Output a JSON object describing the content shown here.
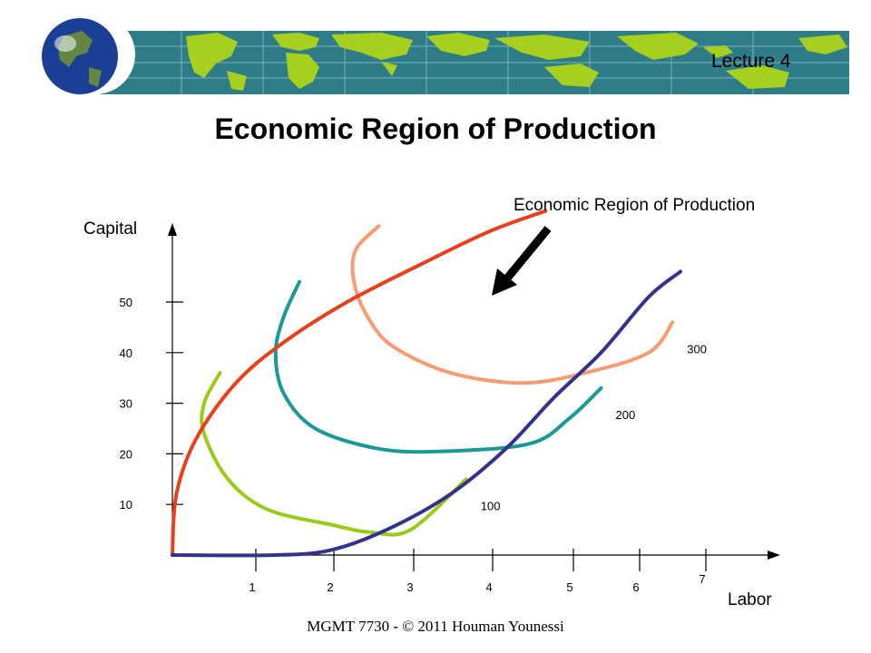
{
  "slide": {
    "lecture_label": "Lecture 4",
    "title": "Economic Region of Production",
    "footer": "MGMT 7730 - © 2011 Houman Younessi"
  },
  "banner": {
    "icons": [
      "globe-icon",
      "world-map"
    ],
    "colors": {
      "ocean": "#2e7c87",
      "land": "#a6cf1f",
      "globe": "#1c3f96"
    }
  },
  "chart_data": {
    "type": "line",
    "xlabel": "Labor",
    "ylabel": "Capital",
    "annotation": "Economic Region of Production",
    "x_ticks": [
      "1",
      "2",
      "3",
      "4",
      "5",
      "6",
      "7"
    ],
    "y_ticks": [
      "10",
      "20",
      "30",
      "40",
      "50"
    ],
    "isoquants": [
      {
        "label": "100",
        "color": "#99cc1a",
        "points": [
          [
            0.6,
            36
          ],
          [
            0.4,
            30
          ],
          [
            0.4,
            24
          ],
          [
            0.7,
            15
          ],
          [
            1.2,
            9
          ],
          [
            2.0,
            6
          ],
          [
            2.5,
            4.5
          ],
          [
            3.0,
            5
          ],
          [
            3.7,
            15
          ]
        ]
      },
      {
        "label": "200",
        "color": "#1a9999",
        "points": [
          [
            1.6,
            54
          ],
          [
            1.4,
            47
          ],
          [
            1.3,
            40
          ],
          [
            1.4,
            32
          ],
          [
            1.8,
            25
          ],
          [
            2.6,
            21
          ],
          [
            3.4,
            20.5
          ],
          [
            4.5,
            22
          ],
          [
            5.0,
            27
          ],
          [
            5.4,
            33
          ]
        ]
      },
      {
        "label": "300",
        "color": "#f79b73",
        "points": [
          [
            2.6,
            65
          ],
          [
            2.3,
            60
          ],
          [
            2.3,
            53
          ],
          [
            2.5,
            46
          ],
          [
            2.8,
            41
          ],
          [
            3.5,
            36
          ],
          [
            4.4,
            34
          ],
          [
            5.2,
            36
          ],
          [
            6.0,
            40
          ],
          [
            6.3,
            46
          ]
        ]
      }
    ],
    "ridge_lines": [
      {
        "color": "#e8401a",
        "points": [
          [
            0,
            0
          ],
          [
            0.05,
            12
          ],
          [
            0.3,
            23
          ],
          [
            0.8,
            34
          ],
          [
            1.4,
            42
          ],
          [
            2.2,
            50
          ],
          [
            3.2,
            58
          ],
          [
            4.0,
            64
          ],
          [
            4.7,
            68
          ]
        ]
      },
      {
        "color": "#33338c",
        "points": [
          [
            0,
            0
          ],
          [
            1.3,
            0
          ],
          [
            2.0,
            1
          ],
          [
            2.7,
            5
          ],
          [
            3.5,
            12
          ],
          [
            4.2,
            21
          ],
          [
            4.8,
            31
          ],
          [
            5.4,
            40
          ],
          [
            6.0,
            51
          ],
          [
            6.4,
            56
          ]
        ]
      }
    ]
  }
}
